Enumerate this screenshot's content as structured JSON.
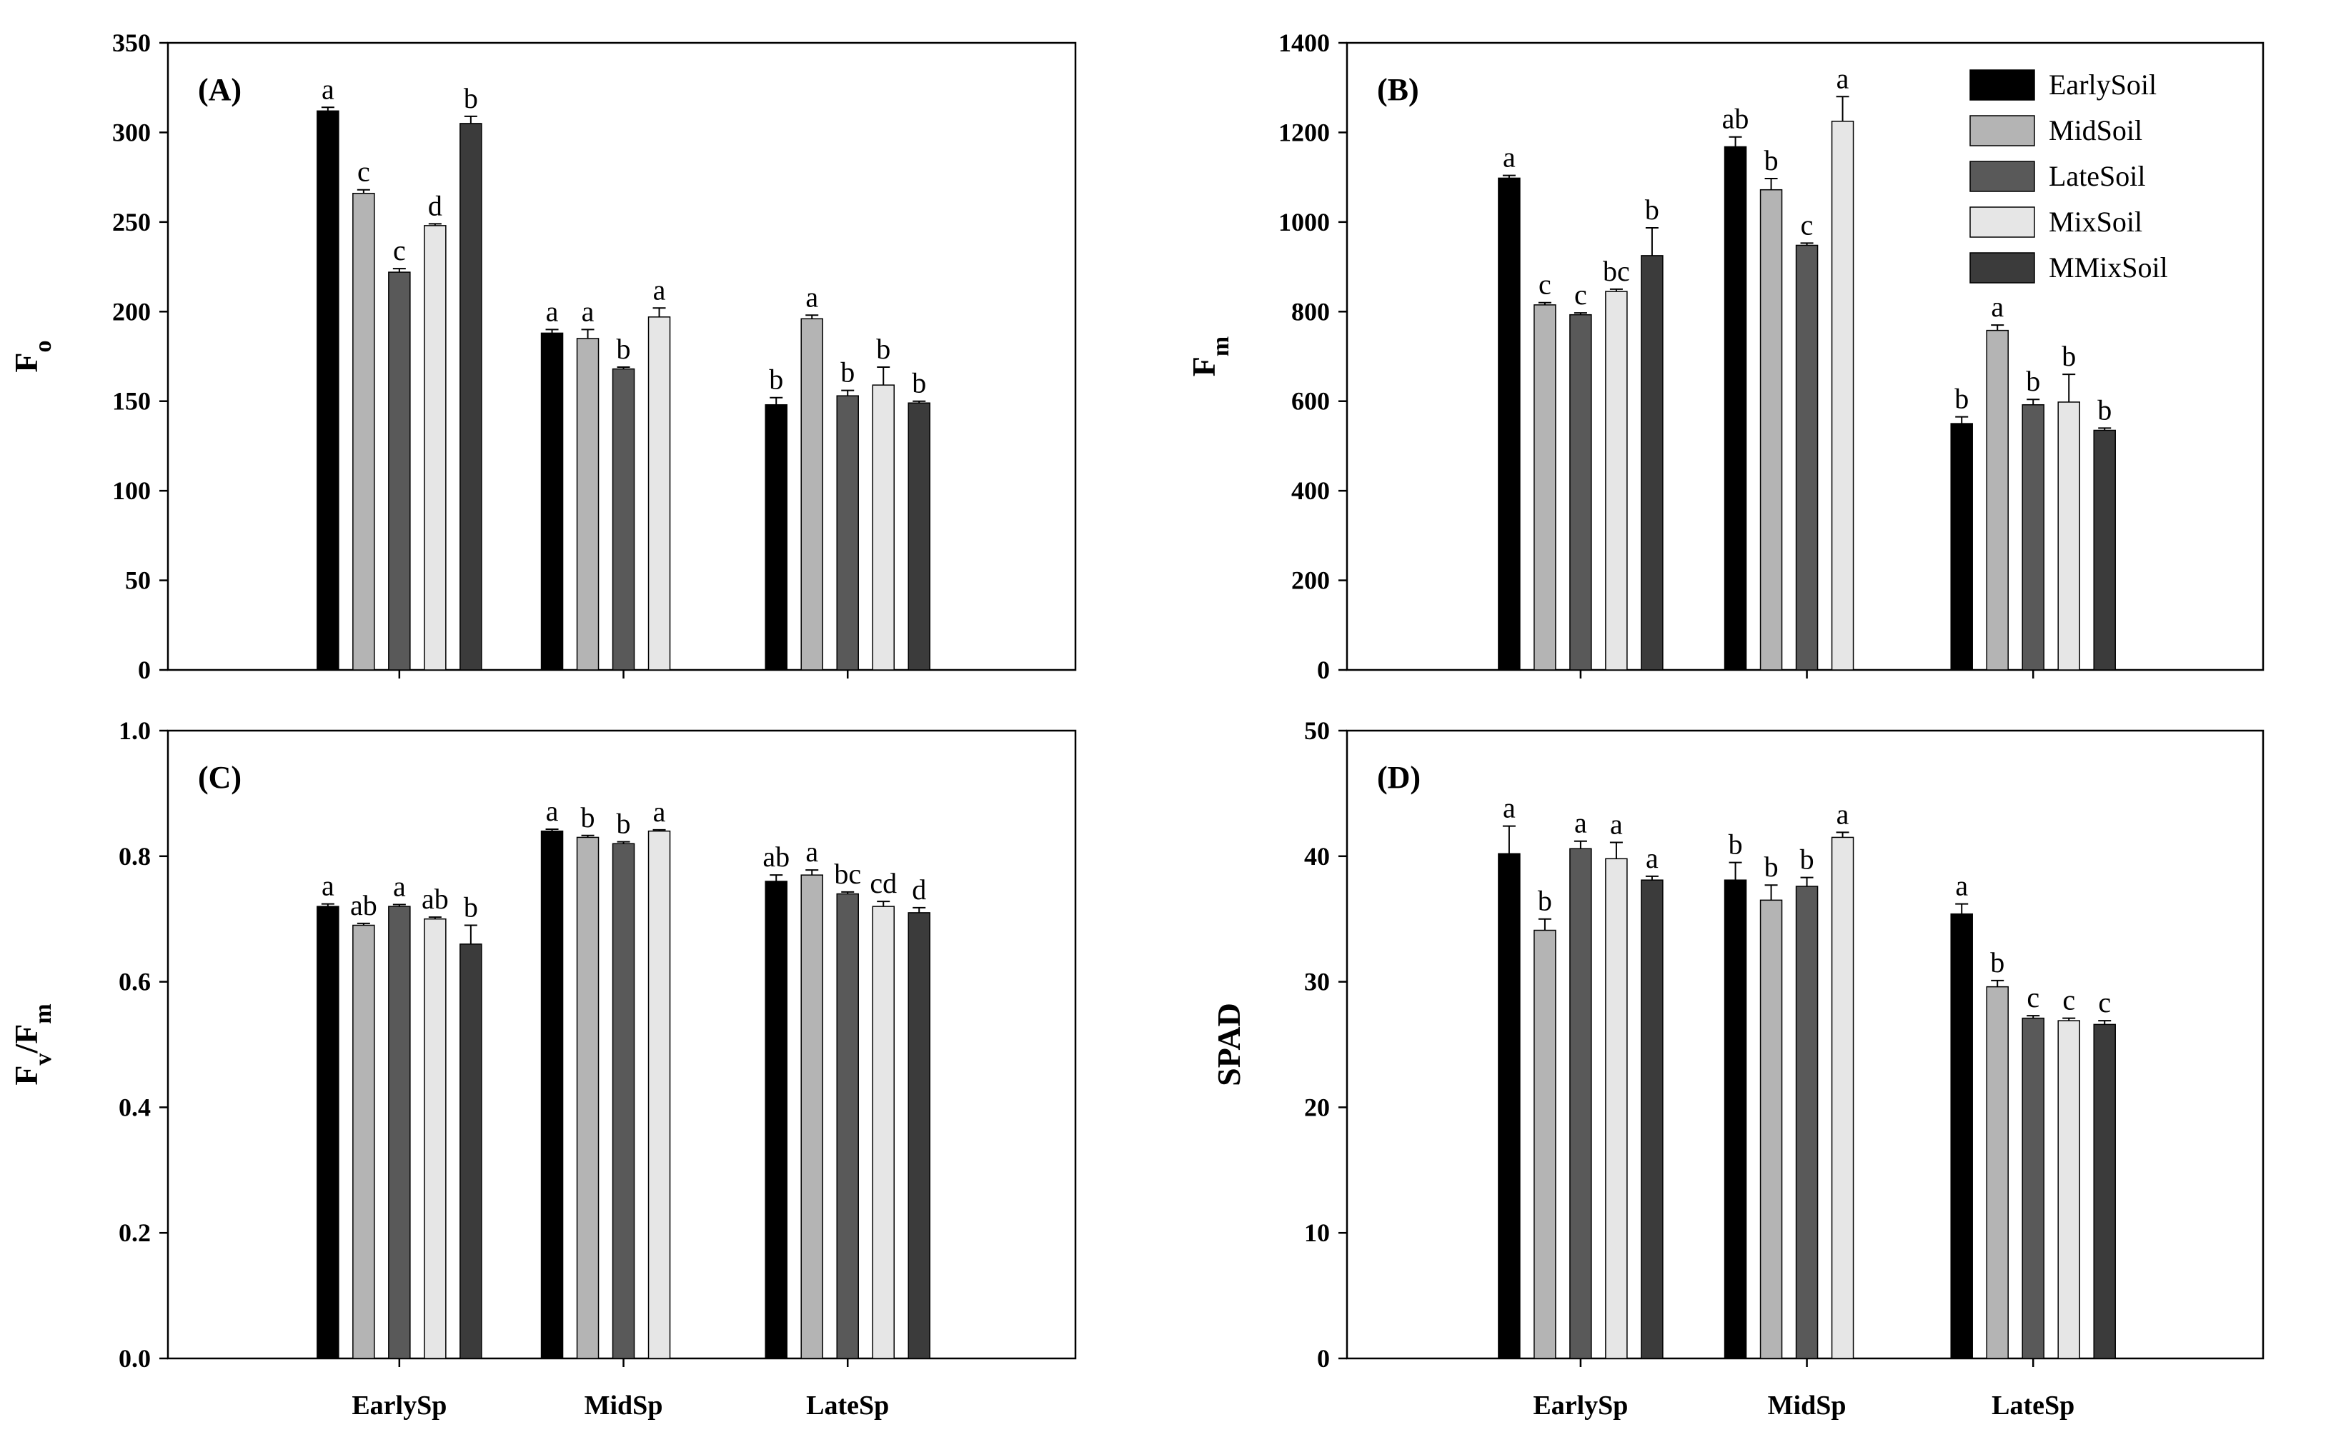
{
  "colors": {
    "EarlySoil": "#000000",
    "MidSoil": "#b4b4b4",
    "LateSoil": "#595959",
    "MixSoil": "#e6e6e6",
    "MMixSoil": "#3b3b3b"
  },
  "chart_data": [
    {
      "type": "bar",
      "panel_label": "(A)",
      "ylabel": "F",
      "ylabel_sub": "o",
      "ylim": [
        0,
        350
      ],
      "yticks": [
        "0",
        "50",
        "100",
        "150",
        "200",
        "250",
        "300",
        "350"
      ],
      "ytick_values": [
        0,
        50,
        100,
        150,
        200,
        250,
        300,
        350
      ],
      "categories": [
        "EarlySp",
        "MidSp",
        "LateSp"
      ],
      "show_xlabels": false,
      "show_legend": false,
      "series": [
        {
          "name": "EarlySoil",
          "values": [
            312,
            188,
            148
          ],
          "errors": [
            2,
            2,
            4
          ],
          "letters": [
            "a",
            "a",
            "b"
          ]
        },
        {
          "name": "MidSoil",
          "values": [
            266,
            185,
            196
          ],
          "errors": [
            2,
            5,
            2
          ],
          "letters": [
            "c",
            "a",
            "a"
          ]
        },
        {
          "name": "LateSoil",
          "values": [
            222,
            168,
            153
          ],
          "errors": [
            2,
            1,
            3
          ],
          "letters": [
            "c",
            "b",
            "b"
          ]
        },
        {
          "name": "MixSoil",
          "values": [
            248,
            197,
            159
          ],
          "errors": [
            1,
            5,
            10
          ],
          "letters": [
            "d",
            "a",
            "b"
          ]
        },
        {
          "name": "MMixSoil",
          "values": [
            305,
            null,
            149
          ],
          "errors": [
            4,
            null,
            1
          ],
          "letters": [
            "b",
            null,
            "b"
          ]
        }
      ]
    },
    {
      "type": "bar",
      "panel_label": "(B)",
      "ylabel": "F",
      "ylabel_sub": "m",
      "ylim": [
        0,
        1400
      ],
      "yticks": [
        "0",
        "200",
        "400",
        "600",
        "800",
        "1000",
        "1200",
        "1400"
      ],
      "ytick_values": [
        0,
        200,
        400,
        600,
        800,
        1000,
        1200,
        1400
      ],
      "categories": [
        "EarlySp",
        "MidSp",
        "LateSp"
      ],
      "show_xlabels": false,
      "show_legend": true,
      "series": [
        {
          "name": "EarlySoil",
          "values": [
            1098,
            1168,
            550
          ],
          "errors": [
            6,
            22,
            15
          ],
          "letters": [
            "a",
            "ab",
            "b"
          ]
        },
        {
          "name": "MidSoil",
          "values": [
            815,
            1072,
            758
          ],
          "errors": [
            5,
            25,
            12
          ],
          "letters": [
            "c",
            "b",
            "a"
          ]
        },
        {
          "name": "LateSoil",
          "values": [
            793,
            948,
            592
          ],
          "errors": [
            4,
            5,
            12
          ],
          "letters": [
            "c",
            "c",
            "b"
          ]
        },
        {
          "name": "MixSoil",
          "values": [
            845,
            1225,
            598
          ],
          "errors": [
            5,
            55,
            62
          ],
          "letters": [
            "bc",
            "a",
            "b"
          ]
        },
        {
          "name": "MMixSoil",
          "values": [
            925,
            null,
            535
          ],
          "errors": [
            62,
            null,
            5
          ],
          "letters": [
            "b",
            null,
            "b"
          ]
        }
      ]
    },
    {
      "type": "bar",
      "panel_label": "(C)",
      "ylabel": "F",
      "ylabel_sub": "v",
      "ylabel_rest": "/F",
      "ylabel_sub2": "m",
      "ylim": [
        0,
        1.0
      ],
      "yticks": [
        "0.0",
        "0.2",
        "0.4",
        "0.6",
        "0.8",
        "1.0"
      ],
      "ytick_values": [
        0,
        0.2,
        0.4,
        0.6,
        0.8,
        1.0
      ],
      "categories": [
        "EarlySp",
        "MidSp",
        "LateSp"
      ],
      "show_xlabels": true,
      "show_legend": false,
      "series": [
        {
          "name": "EarlySoil",
          "values": [
            0.72,
            0.84,
            0.76
          ],
          "errors": [
            0.004,
            0.003,
            0.01
          ],
          "letters": [
            "a",
            "a",
            "ab"
          ]
        },
        {
          "name": "MidSoil",
          "values": [
            0.69,
            0.83,
            0.77
          ],
          "errors": [
            0.003,
            0.003,
            0.008
          ],
          "letters": [
            "ab",
            "b",
            "a"
          ]
        },
        {
          "name": "LateSoil",
          "values": [
            0.72,
            0.82,
            0.74
          ],
          "errors": [
            0.003,
            0.003,
            0.003
          ],
          "letters": [
            "a",
            "b",
            "bc"
          ]
        },
        {
          "name": "MixSoil",
          "values": [
            0.7,
            0.84,
            0.72
          ],
          "errors": [
            0.003,
            0.002,
            0.008
          ],
          "letters": [
            "ab",
            "a",
            "cd"
          ]
        },
        {
          "name": "MMixSoil",
          "values": [
            0.66,
            null,
            0.71
          ],
          "errors": [
            0.03,
            null,
            0.008
          ],
          "letters": [
            "b",
            null,
            "d"
          ]
        }
      ]
    },
    {
      "type": "bar",
      "panel_label": "(D)",
      "ylabel": "SPAD",
      "ylim": [
        0,
        50
      ],
      "yticks": [
        "0",
        "10",
        "20",
        "30",
        "40",
        "50"
      ],
      "ytick_values": [
        0,
        10,
        20,
        30,
        40,
        50
      ],
      "categories": [
        "EarlySp",
        "MidSp",
        "LateSp"
      ],
      "show_xlabels": true,
      "show_legend": false,
      "series": [
        {
          "name": "EarlySoil",
          "values": [
            40.2,
            38.1,
            35.4
          ],
          "errors": [
            2.2,
            1.4,
            0.8
          ],
          "letters": [
            "a",
            "b",
            "a"
          ]
        },
        {
          "name": "MidSoil",
          "values": [
            34.1,
            36.5,
            29.6
          ],
          "errors": [
            0.9,
            1.2,
            0.5
          ],
          "letters": [
            "b",
            "b",
            "b"
          ]
        },
        {
          "name": "LateSoil",
          "values": [
            40.6,
            37.6,
            27.1
          ],
          "errors": [
            0.6,
            0.7,
            0.2
          ],
          "letters": [
            "a",
            "b",
            "c"
          ]
        },
        {
          "name": "MixSoil",
          "values": [
            39.8,
            41.5,
            26.9
          ],
          "errors": [
            1.3,
            0.4,
            0.2
          ],
          "letters": [
            "a",
            "a",
            "c"
          ]
        },
        {
          "name": "MMixSoil",
          "values": [
            38.1,
            null,
            26.6
          ],
          "errors": [
            0.3,
            null,
            0.3
          ],
          "letters": [
            "a",
            null,
            "c"
          ]
        }
      ]
    }
  ]
}
